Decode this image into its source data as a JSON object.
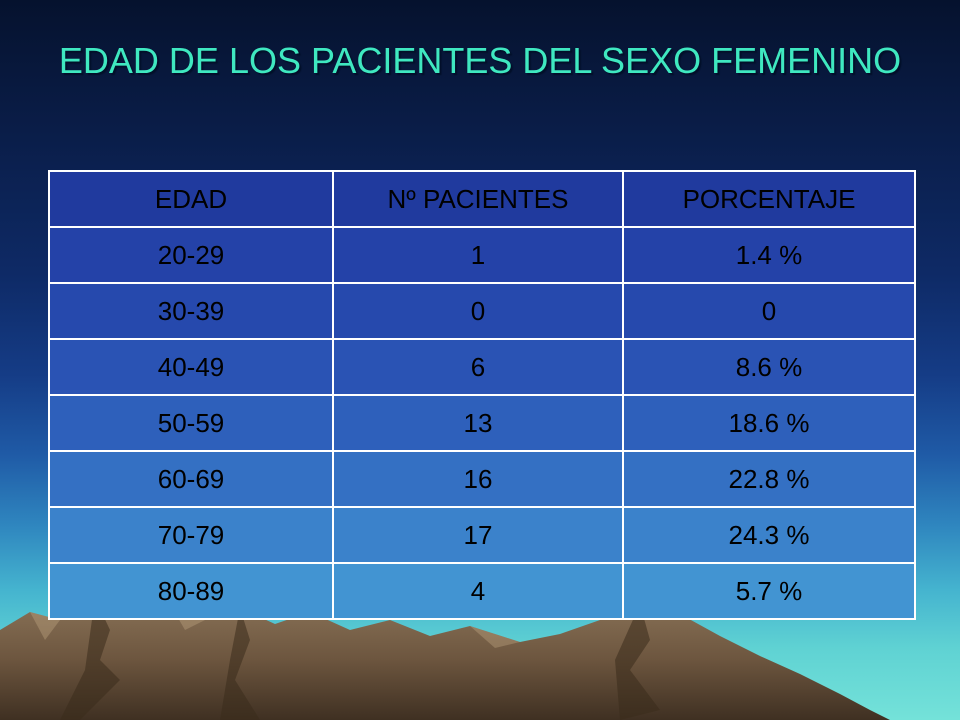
{
  "slide": {
    "title": "EDAD DE LOS PACIENTES DEL SEXO FEMENINO"
  },
  "table": {
    "headers": [
      "EDAD",
      "Nº PACIENTES",
      "PORCENTAJE"
    ],
    "rows": [
      [
        "20-29",
        "1",
        "1.4 %"
      ],
      [
        "30-39",
        "0",
        "0"
      ],
      [
        "40-49",
        "6",
        "8.6 %"
      ],
      [
        "50-59",
        "13",
        "18.6 %"
      ],
      [
        "60-69",
        "16",
        "22.8 %"
      ],
      [
        "70-79",
        "17",
        "24.3 %"
      ],
      [
        "80-89",
        "4",
        "5.7 %"
      ]
    ]
  },
  "colors": {
    "title": "#3fe8c0",
    "border": "#ffffff",
    "text": "#000000"
  }
}
